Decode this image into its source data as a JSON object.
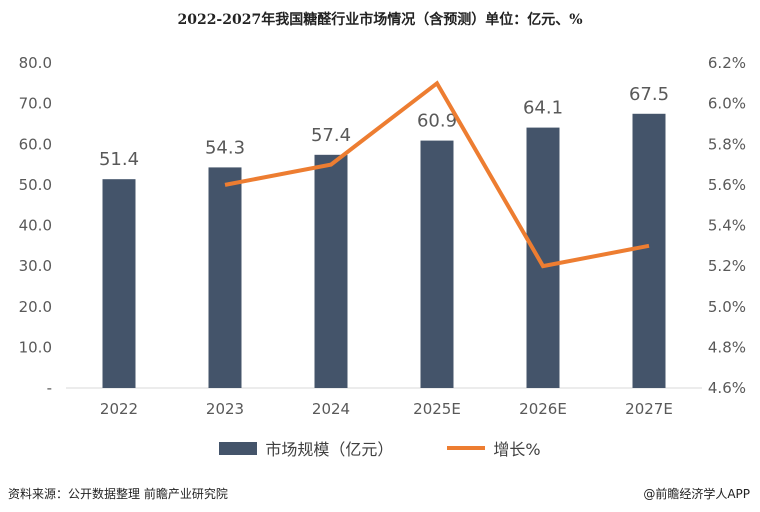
{
  "title": "2022-2027年我国糖醛行业市场情况（含预测）单位：亿元、%",
  "footer": {
    "source": "资料来源：公开数据整理 前瞻产业研究院",
    "brand": "@前瞻经济学人APP"
  },
  "colors": {
    "bar": "#44546a",
    "line": "#ed7d31",
    "axis_text": "#595959"
  },
  "chart_data": {
    "type": "bar",
    "title": "2022-2027年我国糖醛行业市场情况（含预测）单位：亿元、%",
    "categories": [
      "2022",
      "2023",
      "2024",
      "2025E",
      "2026E",
      "2027E"
    ],
    "series": [
      {
        "name": "市场规模（亿元）",
        "type": "bar",
        "axis": "left",
        "values": [
          51.4,
          54.3,
          57.4,
          60.9,
          64.1,
          67.5
        ],
        "labels": [
          "51.4",
          "54.3",
          "57.4",
          "60.9",
          "64.1",
          "67.5"
        ]
      },
      {
        "name": "增长%",
        "type": "line",
        "axis": "right",
        "values": [
          null,
          5.6,
          5.7,
          6.1,
          5.2,
          5.3
        ]
      }
    ],
    "y_left": {
      "min": 0,
      "max": 80,
      "ticks": [
        "-",
        "10.0",
        "20.0",
        "30.0",
        "40.0",
        "50.0",
        "60.0",
        "70.0",
        "80.0"
      ]
    },
    "y_right": {
      "min": 4.6,
      "max": 6.2,
      "ticks": [
        "4.6%",
        "4.8%",
        "5.0%",
        "5.2%",
        "5.4%",
        "5.6%",
        "5.8%",
        "6.0%",
        "6.2%"
      ]
    },
    "grid": false,
    "legend": "bottom"
  }
}
